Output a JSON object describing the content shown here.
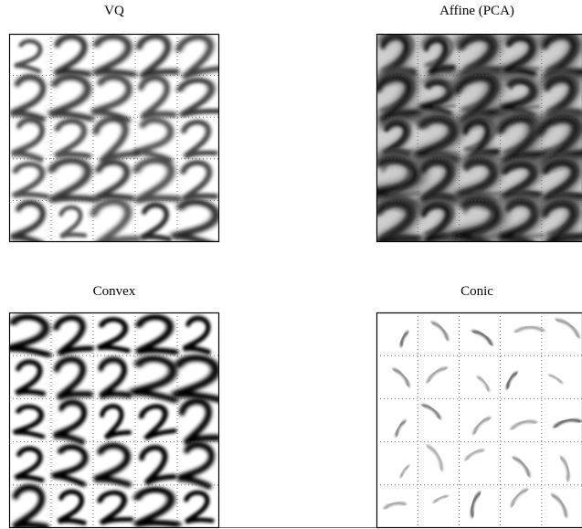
{
  "panels": [
    {
      "title": "VQ"
    },
    {
      "title": "Affine (PCA)"
    },
    {
      "title": "Convex"
    },
    {
      "title": "Conic"
    }
  ]
}
